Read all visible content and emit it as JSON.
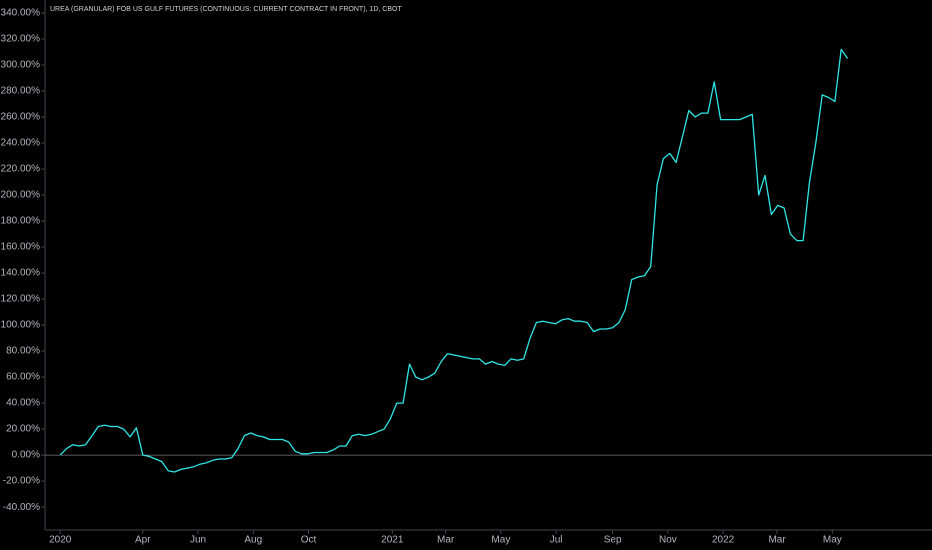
{
  "chart_data": {
    "type": "line",
    "title": "UREA (GRANULAR) FOB US GULF FUTURES (CONTINUOUS: CURRENT CONTRACT IN FRONT), 1D, CBOT",
    "color": "#2ee6e6",
    "values": [
      0,
      5,
      8,
      7,
      8,
      15,
      22,
      23,
      22,
      22,
      20,
      14,
      21,
      0,
      -1,
      -3,
      -5,
      -12,
      -13,
      -11,
      -10,
      -9,
      -7,
      -6,
      -4,
      -3,
      -3,
      -2,
      5,
      15,
      17,
      15,
      14,
      12,
      12,
      12,
      10,
      3,
      1,
      1,
      2,
      2,
      2,
      4,
      7,
      7,
      15,
      16,
      15,
      16,
      18,
      20,
      28,
      40,
      40,
      70,
      60,
      58,
      60,
      63,
      72,
      78,
      77,
      76,
      75,
      74,
      74,
      70,
      72,
      70,
      69,
      74,
      73,
      74,
      90,
      102,
      103,
      102,
      101,
      104,
      105,
      103,
      103,
      102,
      95,
      97,
      97,
      98,
      102,
      112,
      135,
      137,
      138,
      145,
      208,
      228,
      232,
      225,
      245,
      265,
      260,
      263,
      263,
      287,
      258,
      258,
      258,
      258,
      260,
      262,
      200,
      215,
      185,
      192,
      190,
      170,
      165,
      165,
      210,
      240,
      277,
      275,
      272,
      312,
      305
    ],
    "xlim": [
      -2.4,
      137.3
    ],
    "xticks": [
      {
        "value": 0,
        "label": "2020"
      },
      {
        "value": 13,
        "label": "Apr"
      },
      {
        "value": 21.7,
        "label": "Jun"
      },
      {
        "value": 30.4,
        "label": "Aug"
      },
      {
        "value": 39.1,
        "label": "Oct"
      },
      {
        "value": 52.3,
        "label": "2021"
      },
      {
        "value": 60.7,
        "label": "Mar"
      },
      {
        "value": 69.4,
        "label": "May"
      },
      {
        "value": 78.1,
        "label": "Jul"
      },
      {
        "value": 87,
        "label": "Sep"
      },
      {
        "value": 95.7,
        "label": "Nov"
      },
      {
        "value": 104.4,
        "label": "2022"
      },
      {
        "value": 112.9,
        "label": "Mar"
      },
      {
        "value": 121.6,
        "label": "May"
      }
    ],
    "ylim": [
      -57.6,
      350
    ],
    "yticks": [
      {
        "value": -40,
        "label": "-40.00%"
      },
      {
        "value": -20,
        "label": "-20.00%"
      },
      {
        "value": 0,
        "label": "0.00%"
      },
      {
        "value": 20,
        "label": "20.00%"
      },
      {
        "value": 40,
        "label": "40.00%"
      },
      {
        "value": 60,
        "label": "60.00%"
      },
      {
        "value": 80,
        "label": "80.00%"
      },
      {
        "value": 100,
        "label": "100.00%"
      },
      {
        "value": 120,
        "label": "120.00%"
      },
      {
        "value": 140,
        "label": "140.00%"
      },
      {
        "value": 160,
        "label": "160.00%"
      },
      {
        "value": 180,
        "label": "180.00%"
      },
      {
        "value": 200,
        "label": "200.00%"
      },
      {
        "value": 220,
        "label": "220.00%"
      },
      {
        "value": 240,
        "label": "240.00%"
      },
      {
        "value": 260,
        "label": "260.00%"
      },
      {
        "value": 280,
        "label": "280.00%"
      },
      {
        "value": 300,
        "label": "300.00%"
      },
      {
        "value": 320,
        "label": "320.00%"
      },
      {
        "value": 340,
        "label": "340.00%"
      }
    ]
  }
}
